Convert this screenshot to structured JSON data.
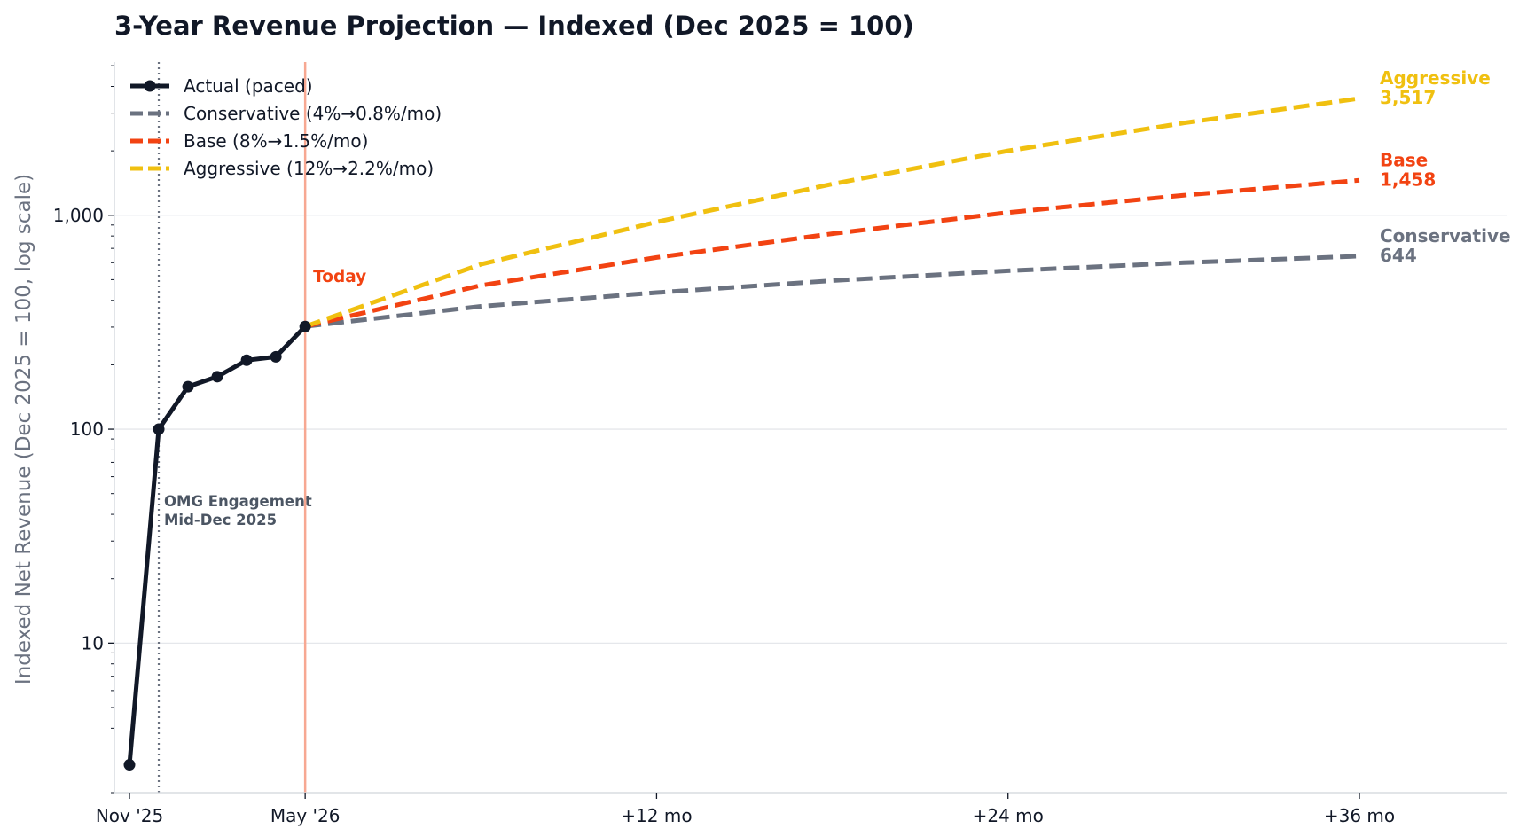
{
  "chart_data": {
    "type": "line",
    "title": "3-Year Revenue Projection — Indexed (Dec 2025 = 100)",
    "ylabel": "Indexed Net Revenue (Dec 2025 = 100, log scale)",
    "xlabel": "",
    "yscale": "log",
    "ylim": [
      2,
      5200
    ],
    "xlim": [
      -0.4,
      40.5
    ],
    "x_ticks": [
      {
        "x": 0,
        "label": "Nov '25"
      },
      {
        "x": 6,
        "label": "May '26"
      },
      {
        "x": 18,
        "label": "+12 mo"
      },
      {
        "x": 30,
        "label": "+24 mo"
      },
      {
        "x": 42,
        "label": "+36 mo"
      }
    ],
    "y_ticks": [
      {
        "y": 10,
        "label": "10"
      },
      {
        "y": 100,
        "label": "100"
      },
      {
        "y": 1000,
        "label": "1,000"
      }
    ],
    "grid": "horizontal",
    "legend_position": "top-left",
    "series": [
      {
        "name": "Actual (paced)",
        "style": "solid-markers",
        "color": "#111827",
        "x": [
          0,
          1,
          2,
          3,
          4,
          5,
          6
        ],
        "y": [
          2.7,
          100,
          158,
          176,
          210,
          218,
          302
        ]
      },
      {
        "name": "Conservative (4%→0.8%/mo)",
        "style": "dashed",
        "color": "#6b7280",
        "end_label": "Conservative",
        "end_value": "644",
        "x": [
          6,
          12,
          18,
          24,
          30,
          36,
          42
        ],
        "y": [
          302,
          375,
          435,
          495,
          550,
          600,
          644
        ]
      },
      {
        "name": "Base (8%→1.5%/mo)",
        "style": "dashed",
        "color": "#f24312",
        "end_label": "Base",
        "end_value": "1,458",
        "x": [
          6,
          12,
          18,
          24,
          30,
          36,
          42
        ],
        "y": [
          302,
          470,
          635,
          820,
          1030,
          1240,
          1458
        ]
      },
      {
        "name": "Aggressive (12%→2.2%/mo)",
        "style": "dashed",
        "color": "#f0c010",
        "end_label": "Aggressive",
        "end_value": "3,517",
        "x": [
          6,
          12,
          18,
          24,
          30,
          36,
          42
        ],
        "y": [
          302,
          590,
          930,
          1400,
          2000,
          2700,
          3517
        ]
      }
    ],
    "annotations": [
      {
        "type": "vline",
        "x": 1,
        "style": "dotted",
        "color": "#6b7280",
        "text": [
          "OMG Engagement",
          "Mid-Dec 2025"
        ]
      },
      {
        "type": "vline",
        "x": 6,
        "style": "solid",
        "color": "#f7a892",
        "text": [
          "Today"
        ],
        "text_color": "#f24312"
      }
    ]
  }
}
